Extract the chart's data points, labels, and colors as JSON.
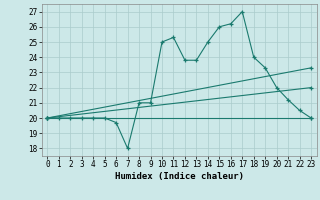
{
  "title": "",
  "xlabel": "Humidex (Indice chaleur)",
  "background_color": "#cce8e8",
  "grid_color": "#aacccc",
  "line_color": "#1a7a6e",
  "xlim": [
    -0.5,
    23.5
  ],
  "ylim": [
    17.5,
    27.5
  ],
  "yticks": [
    18,
    19,
    20,
    21,
    22,
    23,
    24,
    25,
    26,
    27
  ],
  "xticks": [
    0,
    1,
    2,
    3,
    4,
    5,
    6,
    7,
    8,
    9,
    10,
    11,
    12,
    13,
    14,
    15,
    16,
    17,
    18,
    19,
    20,
    21,
    22,
    23
  ],
  "series": [
    {
      "x": [
        0,
        1,
        2,
        3,
        4,
        5,
        6,
        7,
        8,
        9,
        10,
        11,
        12,
        13,
        14,
        15,
        16,
        17,
        18,
        19,
        20,
        21,
        22,
        23
      ],
      "y": [
        20,
        20,
        20,
        20,
        20,
        20,
        19.7,
        18,
        21,
        21,
        25,
        25.3,
        23.8,
        23.8,
        25,
        26,
        26.2,
        27,
        24,
        23.3,
        22,
        21.2,
        20.5,
        20
      ],
      "marker": true
    },
    {
      "x": [
        0,
        23
      ],
      "y": [
        20,
        20
      ],
      "marker": true
    },
    {
      "x": [
        0,
        23
      ],
      "y": [
        20,
        22
      ],
      "marker": true
    },
    {
      "x": [
        0,
        23
      ],
      "y": [
        20,
        23.3
      ],
      "marker": true
    }
  ]
}
